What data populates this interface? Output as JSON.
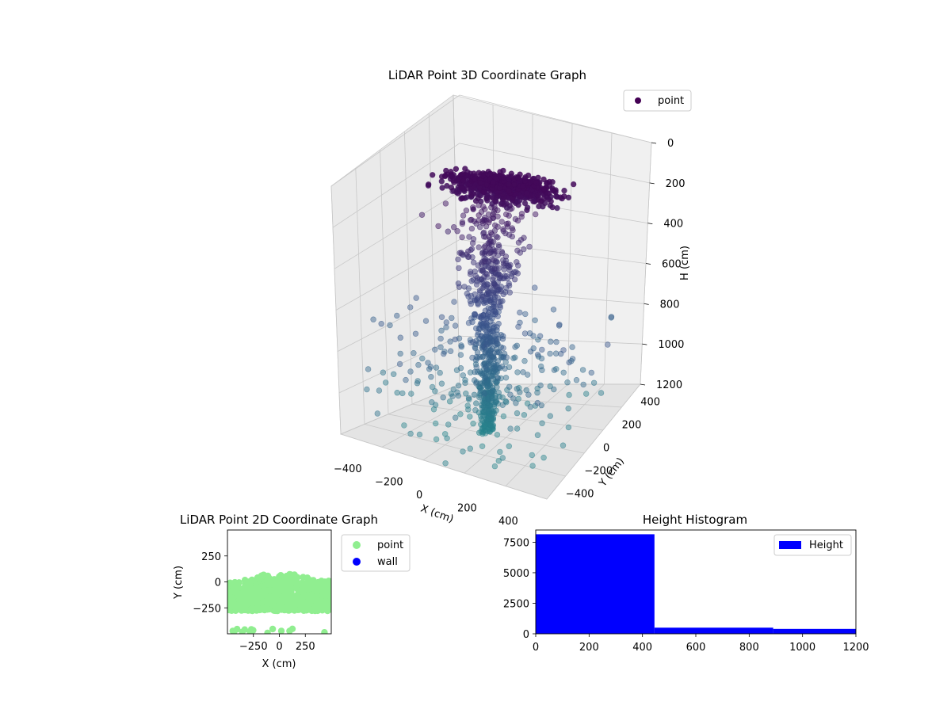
{
  "chart_data": [
    {
      "type": "scatter",
      "projection": "3d",
      "title": "LiDAR Point 3D Coordinate Graph",
      "xlabel": "X (cm)",
      "ylabel": "Y (cm)",
      "zlabel": "H (cm)",
      "xlim": [
        -500,
        500
      ],
      "ylim": [
        -500,
        500
      ],
      "zlim": [
        1200,
        0
      ],
      "z_inverted": true,
      "xticks": [
        -400,
        -200,
        0,
        200,
        400
      ],
      "yticks": [
        -400,
        -200,
        0,
        200,
        400
      ],
      "zticks": [
        0,
        200,
        400,
        600,
        800,
        1000,
        1200
      ],
      "colormap": "viridis",
      "legend": {
        "position": "upper-right",
        "entries": [
          {
            "label": "point",
            "color": "#440154"
          }
        ]
      },
      "grid": true,
      "series": [
        {
          "name": "point",
          "description_of_distribution": "dense disc at H≈50–200 spanning X≈-300..300, funnel-shaped column narrowing toward X≈0,Y≈-100 down to H≈1200",
          "samples": [
            {
              "x": -300,
              "y": -50,
              "z": 80
            },
            {
              "x": -200,
              "y": 0,
              "z": 60
            },
            {
              "x": -100,
              "y": 50,
              "z": 50
            },
            {
              "x": 0,
              "y": 80,
              "z": 60
            },
            {
              "x": 100,
              "y": 60,
              "z": 70
            },
            {
              "x": 200,
              "y": 20,
              "z": 90
            },
            {
              "x": 280,
              "y": -40,
              "z": 110
            },
            {
              "x": -250,
              "y": -120,
              "z": 150
            },
            {
              "x": 150,
              "y": -100,
              "z": 160
            },
            {
              "x": -50,
              "y": -60,
              "z": 300
            },
            {
              "x": 30,
              "y": -80,
              "z": 400
            },
            {
              "x": -20,
              "y": -100,
              "z": 500
            },
            {
              "x": 10,
              "y": -90,
              "z": 600
            },
            {
              "x": 0,
              "y": -110,
              "z": 750
            },
            {
              "x": 20,
              "y": -120,
              "z": 900
            },
            {
              "x": -10,
              "y": -100,
              "z": 1000
            },
            {
              "x": 0,
              "y": -130,
              "z": 1100
            },
            {
              "x": 30,
              "y": -150,
              "z": 1180
            }
          ]
        }
      ]
    },
    {
      "type": "scatter",
      "title": "LiDAR Point 2D Coordinate Graph",
      "xlabel": "X (cm)",
      "ylabel": "Y (cm)",
      "xlim": [
        -500,
        500
      ],
      "ylim": [
        -500,
        500
      ],
      "xticks": [
        -250,
        0,
        250
      ],
      "yticks": [
        -250,
        0,
        250
      ],
      "legend": {
        "position": "outside-right",
        "entries": [
          {
            "label": "point",
            "color": "#90ee90"
          },
          {
            "label": "wall",
            "color": "#0000ff"
          }
        ]
      },
      "series": [
        {
          "name": "point",
          "description_of_distribution": "dense band from X≈-500..500, Y≈-300..80 with a bump up to Y≈80 near X≈0; sparse points near Y≈-450",
          "samples": [
            {
              "x": -450,
              "y": -50
            },
            {
              "x": -300,
              "y": -20
            },
            {
              "x": -150,
              "y": 20
            },
            {
              "x": 0,
              "y": 80
            },
            {
              "x": 150,
              "y": 60
            },
            {
              "x": 300,
              "y": 20
            },
            {
              "x": 450,
              "y": 10
            },
            {
              "x": -400,
              "y": -250
            },
            {
              "x": -200,
              "y": -200
            },
            {
              "x": 100,
              "y": -250
            },
            {
              "x": 350,
              "y": -220
            },
            {
              "x": -450,
              "y": -450
            },
            {
              "x": 50,
              "y": -450
            },
            {
              "x": 250,
              "y": -470
            }
          ]
        },
        {
          "name": "wall",
          "samples": []
        }
      ]
    },
    {
      "type": "bar",
      "subtype": "histogram",
      "title": "Height Histogram",
      "xlim": [
        0,
        1200
      ],
      "ylim": [
        0,
        8500
      ],
      "xticks": [
        0,
        200,
        400,
        600,
        800,
        1000,
        1200
      ],
      "yticks": [
        0,
        2500,
        5000,
        7500
      ],
      "legend": {
        "position": "upper-right",
        "entries": [
          {
            "label": "Height",
            "color": "#0000ff"
          }
        ]
      },
      "series": [
        {
          "name": "Height",
          "bins": [
            {
              "start": 0,
              "end": 445,
              "count": 8150
            },
            {
              "start": 445,
              "end": 890,
              "count": 500
            },
            {
              "start": 890,
              "end": 1200,
              "count": 400
            }
          ]
        }
      ]
    }
  ]
}
